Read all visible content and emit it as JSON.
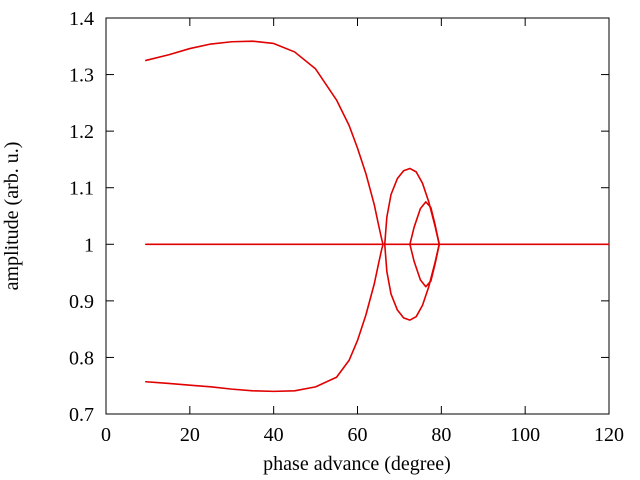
{
  "chart_data": {
    "type": "line",
    "xlabel": "phase advance (degree)",
    "ylabel": "amplitude (arb. u.)",
    "xlim": [
      0,
      120
    ],
    "ylim": [
      0.7,
      1.4
    ],
    "x_ticks": [
      "0",
      "20",
      "40",
      "60",
      "80",
      "100",
      "120"
    ],
    "y_ticks": [
      "0.7",
      "0.8",
      "0.9",
      "1",
      "1.1",
      "1.2",
      "1.3",
      "1.4"
    ],
    "grid": false,
    "legend": "none",
    "series_color": "#e00000",
    "series": [
      {
        "x": [
          9.5,
          120
        ],
        "y": [
          1.0,
          1.0
        ]
      },
      {
        "x": [
          9.5,
          15,
          20,
          25,
          30,
          35,
          40,
          45,
          50,
          55,
          58,
          60,
          62,
          64,
          65,
          65.8,
          66.1,
          65.8,
          65,
          64,
          62,
          60,
          58,
          55,
          50,
          45,
          40,
          35,
          30,
          25,
          20,
          15,
          9.5
        ],
        "y": [
          1.325,
          1.335,
          1.346,
          1.354,
          1.358,
          1.359,
          1.355,
          1.34,
          1.31,
          1.255,
          1.21,
          1.17,
          1.125,
          1.07,
          1.035,
          1.008,
          1.0,
          0.992,
          0.965,
          0.93,
          0.875,
          0.83,
          0.795,
          0.765,
          0.748,
          0.741,
          0.74,
          0.741,
          0.744,
          0.748,
          0.751,
          0.754,
          0.757
        ]
      },
      {
        "x": [
          66.5,
          67,
          68,
          69.5,
          71,
          72.5,
          74,
          75.5,
          77,
          78.5,
          79.5,
          78.5,
          77,
          75.5,
          74,
          72.5,
          71,
          69.5,
          68,
          67,
          66.5
        ],
        "y": [
          1.0,
          1.048,
          1.088,
          1.116,
          1.13,
          1.134,
          1.128,
          1.108,
          1.075,
          1.032,
          1.0,
          0.968,
          0.925,
          0.892,
          0.872,
          0.866,
          0.87,
          0.884,
          0.912,
          0.952,
          1.0
        ]
      },
      {
        "x": [
          72.5,
          73.5,
          75,
          76.3,
          77.5,
          78.5,
          79.5,
          78.5,
          77.5,
          76.3,
          75,
          73.5,
          72.5
        ],
        "y": [
          1.0,
          1.03,
          1.063,
          1.075,
          1.065,
          1.035,
          1.0,
          0.965,
          0.935,
          0.925,
          0.937,
          0.97,
          1.0
        ]
      }
    ]
  }
}
